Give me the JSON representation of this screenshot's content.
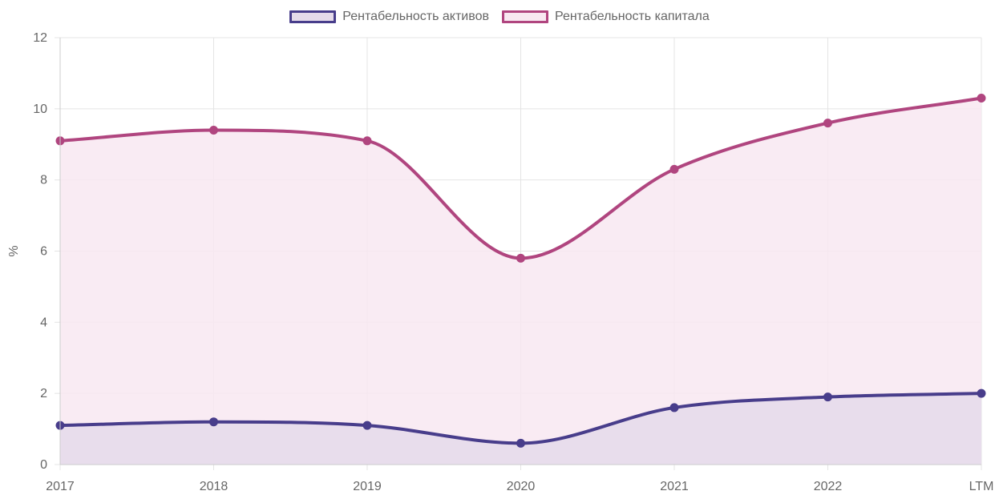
{
  "chart_data": {
    "type": "area",
    "categories": [
      "2017",
      "2018",
      "2019",
      "2020",
      "2021",
      "2022",
      "LTM"
    ],
    "series": [
      {
        "name": "Рентабельность активов",
        "values": [
          1.1,
          1.2,
          1.1,
          0.6,
          1.6,
          1.9,
          2.0
        ],
        "line_color": "#483d8b",
        "fill_color": "#e5dbea"
      },
      {
        "name": "Рентабельность капитала",
        "values": [
          9.1,
          9.4,
          9.1,
          5.8,
          8.3,
          9.6,
          10.3
        ],
        "line_color": "#b0457f",
        "fill_color": "#f8e8f1"
      }
    ],
    "xlabel": "",
    "ylabel": "%",
    "ylim": [
      0,
      12
    ],
    "yticks": [
      "0",
      "2",
      "4",
      "6",
      "8",
      "10",
      "12"
    ],
    "grid": true,
    "legend_position": "top-center",
    "curve": "smooth"
  }
}
